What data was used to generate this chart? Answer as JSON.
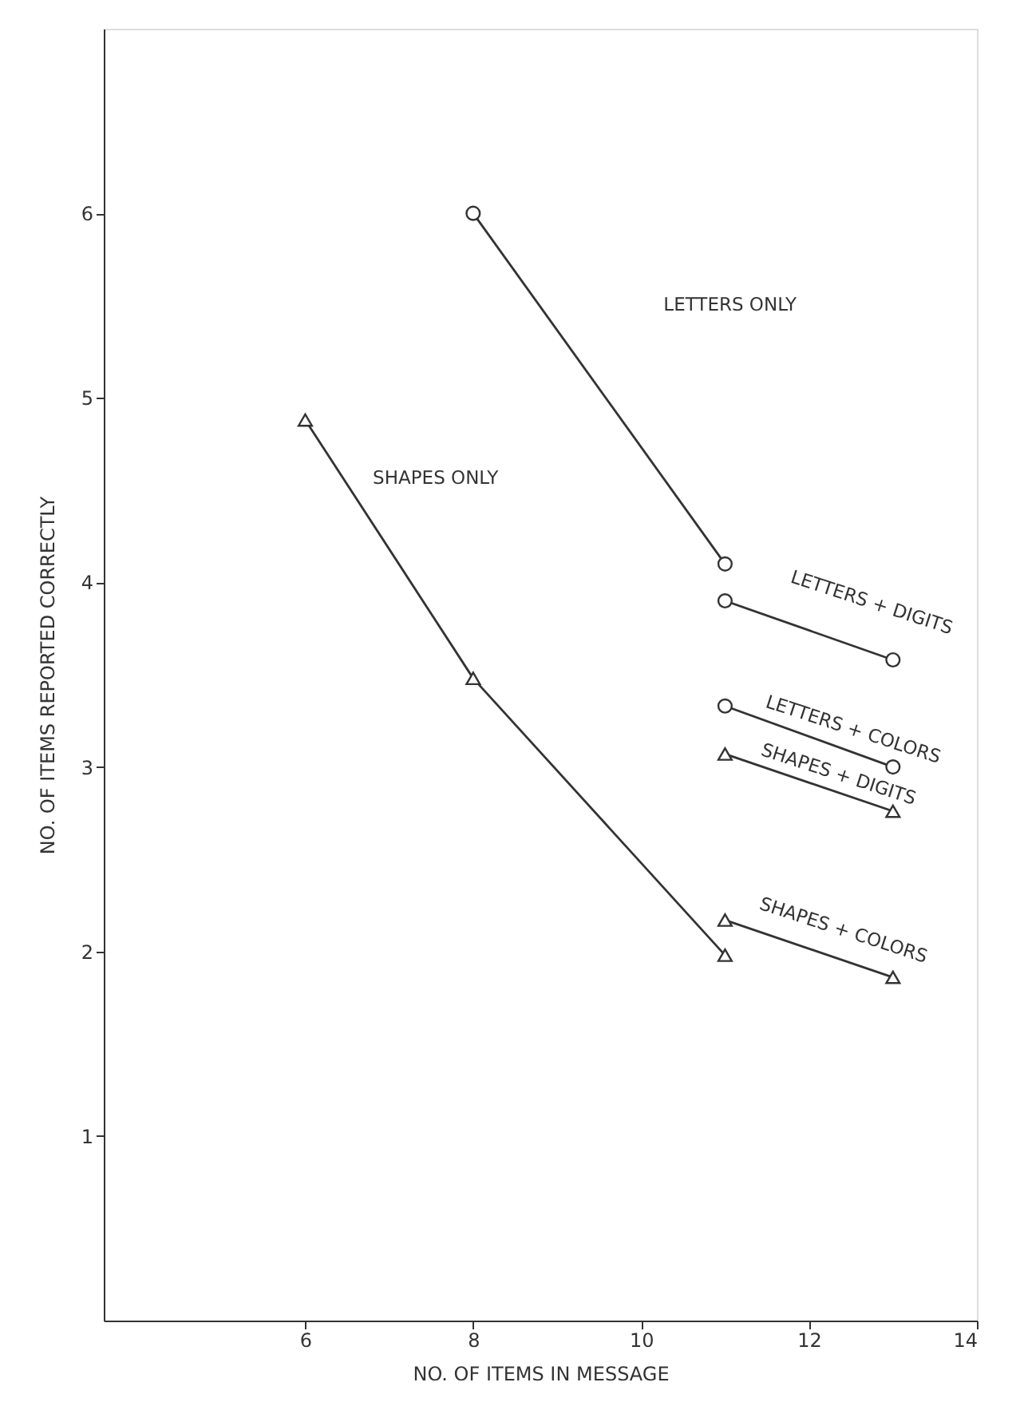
{
  "chart_data": {
    "type": "line",
    "xlabel": "NO. OF ITEMS IN MESSAGE",
    "ylabel": "NO. OF ITEMS REPORTED CORRECTLY",
    "xlim": [
      3.6,
      14
    ],
    "ylim": [
      0,
      7
    ],
    "xticks": [
      6,
      8,
      10,
      12,
      14
    ],
    "yticks": [
      1,
      2,
      3,
      4,
      5,
      6
    ],
    "grid": false,
    "line_style": "solid",
    "series": [
      {
        "color": "#333333",
        "marker": "circle",
        "x": [
          8,
          11
        ],
        "values": [
          6.0,
          4.1
        ]
      },
      {
        "color": "#333333",
        "marker": "circle",
        "x": [
          11,
          13
        ],
        "values": [
          3.9,
          3.58
        ]
      },
      {
        "color": "#333333",
        "marker": "circle",
        "x": [
          11,
          13
        ],
        "values": [
          3.33,
          3.0
        ]
      },
      {
        "color": "#333333",
        "marker": "triangle",
        "x": [
          11,
          13
        ],
        "values": [
          3.07,
          2.76
        ]
      },
      {
        "color": "#333333",
        "marker": "triangle",
        "x": [
          6,
          8,
          11
        ],
        "values": [
          4.88,
          3.48,
          1.98
        ]
      },
      {
        "color": "#333333",
        "marker": "triangle",
        "x": [
          11,
          13
        ],
        "values": [
          2.17,
          1.86
        ]
      }
    ],
    "annotations": [
      "LETTERS ONLY",
      "LETTERS + DIGITS",
      "LETTERS + COLORS",
      "SHAPES + DIGITS",
      "SHAPES ONLY",
      "SHAPES + COLORS"
    ]
  }
}
